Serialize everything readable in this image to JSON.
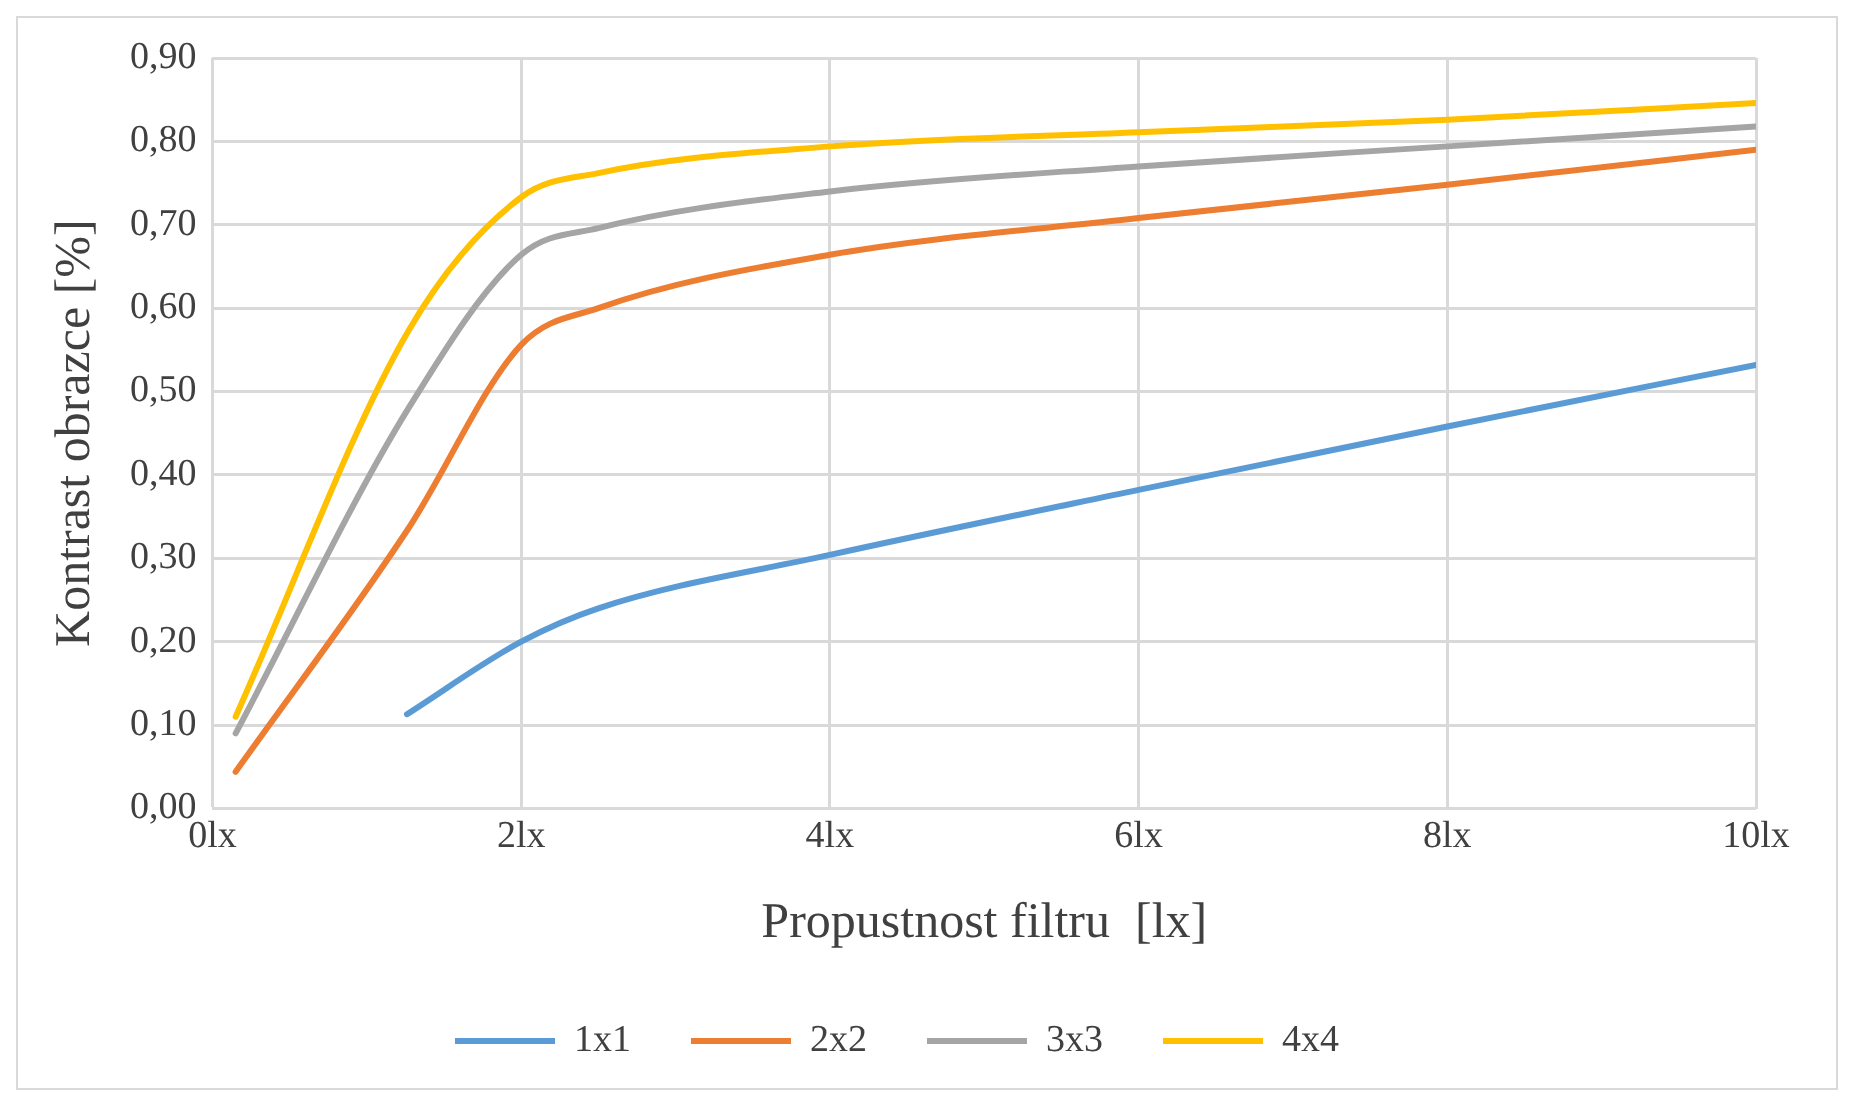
{
  "chart_data": {
    "type": "line",
    "xlabel": "Propustnost filtru  [lx]",
    "ylabel": "Kontrast obrazce [%]",
    "xlim": [
      0,
      10
    ],
    "xticks": [
      {
        "value": 0,
        "label": "0lx"
      },
      {
        "value": 2,
        "label": "2lx"
      },
      {
        "value": 4,
        "label": "4lx"
      },
      {
        "value": 6,
        "label": "6lx"
      },
      {
        "value": 8,
        "label": "8lx"
      },
      {
        "value": 10,
        "label": "10lx"
      }
    ],
    "ylim": [
      0,
      0.9
    ],
    "yticks": [
      {
        "value": 0,
        "label": "0,00"
      },
      {
        "value": 0.1,
        "label": "0,10"
      },
      {
        "value": 0.2,
        "label": "0,20"
      },
      {
        "value": 0.3,
        "label": "0,30"
      },
      {
        "value": 0.4,
        "label": "0,40"
      },
      {
        "value": 0.5,
        "label": "0,50"
      },
      {
        "value": 0.6,
        "label": "0,60"
      },
      {
        "value": 0.7,
        "label": "0,70"
      },
      {
        "value": 0.8,
        "label": "0,80"
      },
      {
        "value": 0.9,
        "label": "0,90"
      }
    ],
    "grid": true,
    "legend": "bottom",
    "marker": "none",
    "line_style": "solid",
    "series": [
      {
        "name": "1x1",
        "color": "#5b9bd5",
        "x": [
          1.26,
          2,
          2.5,
          4,
          6,
          8,
          10
        ],
        "values": [
          0.113,
          0.2,
          0.24,
          0.304,
          0.382,
          0.458,
          0.532
        ]
      },
      {
        "name": "2x2",
        "color": "#ed7d31",
        "x": [
          0.15,
          1.27,
          2,
          2.5,
          4,
          6,
          8,
          10
        ],
        "values": [
          0.044,
          0.336,
          0.556,
          0.6,
          0.664,
          0.708,
          0.748,
          0.79
        ]
      },
      {
        "name": "3x3",
        "color": "#a5a5a5",
        "x": [
          0.15,
          1.27,
          2,
          2.5,
          4,
          6,
          8,
          10
        ],
        "values": [
          0.09,
          0.48,
          0.664,
          0.696,
          0.74,
          0.77,
          0.794,
          0.818
        ]
      },
      {
        "name": "4x4",
        "color": "#ffc000",
        "x": [
          0.15,
          1.27,
          2,
          2.5,
          4,
          6,
          8,
          10
        ],
        "values": [
          0.11,
          0.573,
          0.733,
          0.762,
          0.794,
          0.811,
          0.826,
          0.846
        ]
      }
    ]
  }
}
